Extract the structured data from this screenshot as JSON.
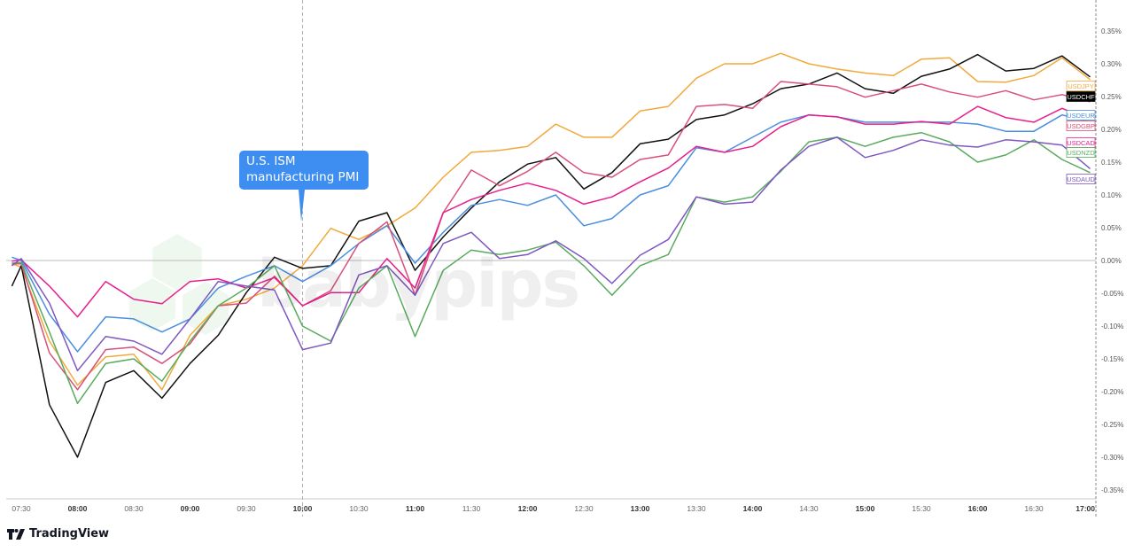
{
  "chart_data": {
    "type": "line",
    "title": "",
    "xlabel": "",
    "ylabel": "",
    "y_unit": "%",
    "ylim": [
      -0.36,
      0.39
    ],
    "grid": false,
    "legend": "right-edge labels",
    "y_ticks": [
      "0.35%",
      "0.30%",
      "0.25%",
      "0.20%",
      "0.15%",
      "0.10%",
      "0.05%",
      "0.00%",
      "-0.05%",
      "-0.10%",
      "-0.15%",
      "-0.20%",
      "-0.25%",
      "-0.30%",
      "-0.35%"
    ],
    "x_ticks": [
      {
        "label": "07:30",
        "major": false
      },
      {
        "label": "08:00",
        "major": true
      },
      {
        "label": "08:30",
        "major": false
      },
      {
        "label": "09:00",
        "major": true
      },
      {
        "label": "09:30",
        "major": false
      },
      {
        "label": "10:00",
        "major": true
      },
      {
        "label": "10:30",
        "major": false
      },
      {
        "label": "11:00",
        "major": true
      },
      {
        "label": "11:30",
        "major": false
      },
      {
        "label": "12:00",
        "major": true
      },
      {
        "label": "12:30",
        "major": false
      },
      {
        "label": "13:00",
        "major": true
      },
      {
        "label": "13:30",
        "major": false
      },
      {
        "label": "14:00",
        "major": true
      },
      {
        "label": "14:30",
        "major": false
      },
      {
        "label": "15:00",
        "major": true
      },
      {
        "label": "15:30",
        "major": false
      },
      {
        "label": "16:00",
        "major": true
      },
      {
        "label": "16:30",
        "major": false
      },
      {
        "label": "17:00",
        "major": true
      }
    ],
    "x": [
      "07:25",
      "07:30",
      "07:45",
      "08:00",
      "08:15",
      "08:30",
      "08:45",
      "09:00",
      "09:15",
      "09:30",
      "09:45",
      "10:00",
      "10:15",
      "10:30",
      "10:45",
      "11:00",
      "11:15",
      "11:30",
      "11:45",
      "12:00",
      "12:15",
      "12:30",
      "12:45",
      "13:00",
      "13:15",
      "13:30",
      "13:45",
      "14:00",
      "14:15",
      "14:30",
      "14:45",
      "15:00",
      "15:15",
      "15:30",
      "15:45",
      "16:00",
      "16:15",
      "16:30",
      "16:45",
      "17:00"
    ],
    "series": [
      {
        "name": "USDJPY",
        "color": "#f2a93b",
        "values": [
          -0.005,
          -0.01,
          -0.123,
          -0.19,
          -0.147,
          -0.143,
          -0.197,
          -0.114,
          -0.069,
          -0.059,
          -0.042,
          -0.008,
          0.049,
          0.032,
          0.053,
          0.08,
          0.127,
          0.165,
          0.168,
          0.174,
          0.208,
          0.188,
          0.188,
          0.228,
          0.235,
          0.278,
          0.3,
          0.3,
          0.316,
          0.3,
          0.292,
          0.286,
          0.282,
          0.307,
          0.309,
          0.273,
          0.272,
          0.282,
          0.309,
          0.276
        ]
      },
      {
        "name": "USDCHF",
        "color": "#111111",
        "values": [
          -0.039,
          -0.008,
          -0.22,
          -0.3,
          -0.186,
          -0.168,
          -0.21,
          -0.157,
          -0.114,
          -0.049,
          0.005,
          -0.012,
          -0.008,
          0.06,
          0.073,
          -0.015,
          0.036,
          0.08,
          0.12,
          0.147,
          0.157,
          0.109,
          0.134,
          0.178,
          0.185,
          0.215,
          0.222,
          0.239,
          0.262,
          0.269,
          0.286,
          0.262,
          0.255,
          0.281,
          0.292,
          0.314,
          0.289,
          0.293,
          0.312,
          0.28
        ]
      },
      {
        "name": "USDEUR",
        "color": "#4a8ee0",
        "values": [
          0.005,
          0.0,
          -0.082,
          -0.139,
          -0.086,
          -0.089,
          -0.109,
          -0.089,
          -0.042,
          -0.024,
          -0.008,
          -0.032,
          -0.008,
          0.026,
          0.053,
          -0.004,
          0.043,
          0.084,
          0.093,
          0.084,
          0.1,
          0.053,
          0.064,
          0.1,
          0.114,
          0.172,
          0.165,
          0.188,
          0.211,
          0.222,
          0.219,
          0.211,
          0.211,
          0.211,
          0.211,
          0.208,
          0.197,
          0.197,
          0.222,
          0.211
        ]
      },
      {
        "name": "USDGBP",
        "color": "#d9507a",
        "values": [
          -0.005,
          -0.005,
          -0.141,
          -0.197,
          -0.136,
          -0.132,
          -0.157,
          -0.127,
          -0.069,
          -0.065,
          -0.024,
          -0.069,
          -0.046,
          0.026,
          0.059,
          -0.053,
          0.073,
          0.138,
          0.114,
          0.136,
          0.165,
          0.134,
          0.127,
          0.154,
          0.161,
          0.235,
          0.238,
          0.232,
          0.273,
          0.269,
          0.265,
          0.249,
          0.259,
          0.269,
          0.257,
          0.249,
          0.259,
          0.245,
          0.253,
          0.242
        ]
      },
      {
        "name": "USDCAD",
        "color": "#e91e8c",
        "values": [
          -0.001,
          0.001,
          -0.039,
          -0.086,
          -0.032,
          -0.059,
          -0.066,
          -0.032,
          -0.028,
          -0.042,
          -0.026,
          -0.069,
          -0.049,
          -0.049,
          0.003,
          -0.042,
          0.073,
          0.093,
          0.107,
          0.118,
          0.107,
          0.086,
          0.097,
          0.12,
          0.141,
          0.174,
          0.165,
          0.174,
          0.204,
          0.222,
          0.219,
          0.208,
          0.208,
          0.212,
          0.208,
          0.235,
          0.218,
          0.211,
          0.232,
          0.215
        ]
      },
      {
        "name": "USDNZD",
        "color": "#5aab5e",
        "values": [
          -0.004,
          -0.003,
          -0.109,
          -0.218,
          -0.157,
          -0.15,
          -0.184,
          -0.123,
          -0.069,
          -0.042,
          -0.008,
          -0.1,
          -0.123,
          -0.042,
          -0.008,
          -0.116,
          -0.015,
          0.016,
          0.009,
          0.016,
          0.028,
          -0.008,
          -0.053,
          -0.008,
          0.009,
          0.097,
          0.089,
          0.097,
          0.136,
          0.181,
          0.188,
          0.174,
          0.188,
          0.195,
          0.181,
          0.15,
          0.161,
          0.184,
          0.154,
          0.134
        ]
      },
      {
        "name": "USDAUD",
        "color": "#7e57c2",
        "values": [
          -0.008,
          0.003,
          -0.065,
          -0.168,
          -0.116,
          -0.123,
          -0.143,
          -0.089,
          -0.032,
          -0.039,
          -0.045,
          -0.136,
          -0.126,
          -0.022,
          -0.008,
          -0.053,
          0.026,
          0.043,
          0.003,
          0.009,
          0.03,
          0.003,
          -0.035,
          0.008,
          0.032,
          0.097,
          0.086,
          0.089,
          0.138,
          0.174,
          0.188,
          0.157,
          0.168,
          0.184,
          0.176,
          0.173,
          0.184,
          0.181,
          0.176,
          0.14
        ]
      }
    ],
    "event_marker": {
      "time": "10:00",
      "label": "U.S. ISM manufacturing PMI"
    }
  },
  "callout": {
    "line1": "U.S. ISM",
    "line2": "manufacturing PMI"
  },
  "branding": {
    "logo": "TradingView",
    "watermark": "babypips"
  }
}
